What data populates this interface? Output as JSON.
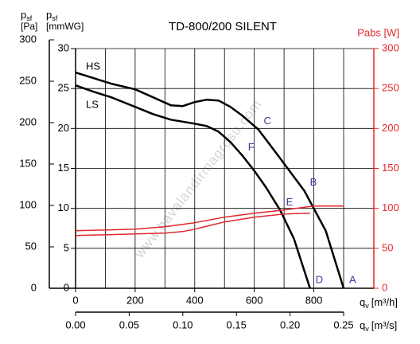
{
  "chart_data": {
    "type": "line",
    "title": "TD-800/200 SILENT",
    "y_label": {
      "symbol": "p",
      "sub": "sf",
      "unit": "[Pa]"
    },
    "ymm_label": {
      "symbol": "p",
      "sub": "sf",
      "unit": "[mmWG]"
    },
    "y2_label": "Pabs [W]",
    "x_label": {
      "symbol": "q",
      "sub": "v",
      "unit": "[m³/h]"
    },
    "x2_label": {
      "symbol": "q",
      "sub": "v",
      "unit": "[m³/s]"
    },
    "ylim": [
      0,
      30
    ],
    "yticks": [
      0,
      5,
      10,
      15,
      20,
      25,
      30
    ],
    "pa_lim": [
      0,
      300
    ],
    "pa_ticks": [
      0,
      50,
      100,
      150,
      200,
      250,
      300
    ],
    "y2lim": [
      0,
      300
    ],
    "y2ticks": [
      0,
      50,
      100,
      150,
      200,
      250,
      300
    ],
    "y2_color": "#e8262b",
    "xlim": [
      0,
      900
    ],
    "xticks": [
      0,
      200,
      400,
      600,
      800
    ],
    "xgrid": [
      100,
      200,
      300,
      400,
      500,
      600,
      700,
      800,
      900
    ],
    "x2lim": [
      0,
      0.25
    ],
    "x2ticks": [
      {
        "value": 0,
        "label": "0.00"
      },
      0.05,
      {
        "value": 0.1,
        "label": "0.10"
      },
      0.15,
      {
        "value": 0.2,
        "label": "0.20"
      },
      0.25
    ],
    "grid": true,
    "series": [
      {
        "name": "HS",
        "color": "#000000",
        "x": [
          0,
          60,
          120,
          200,
          260,
          320,
          360,
          400,
          440,
          480,
          520,
          560,
          613,
          680,
          768,
          840,
          900
        ],
        "values": [
          27.0,
          26.3,
          25.6,
          24.9,
          23.9,
          22.9,
          22.8,
          23.3,
          23.6,
          23.5,
          22.7,
          21.6,
          19.9,
          16.6,
          12.2,
          7.2,
          0
        ]
      },
      {
        "name": "LS",
        "color": "#000000",
        "x": [
          0,
          60,
          120,
          200,
          260,
          320,
          400,
          440,
          480,
          520,
          560,
          600,
          640,
          688,
          733,
          787
        ],
        "values": [
          25.4,
          24.6,
          23.9,
          22.7,
          21.8,
          21.1,
          20.6,
          20.3,
          19.6,
          18.3,
          16.6,
          14.7,
          12.6,
          9.7,
          6.2,
          0
        ]
      },
      {
        "color": "#e0282e",
        "axis": "y2",
        "x": [
          0,
          200,
          300,
          400,
          500,
          600,
          700,
          800,
          900
        ],
        "values": [
          72,
          74,
          77,
          82,
          89,
          94,
          98,
          103,
          103
        ]
      },
      {
        "color": "#e0282e",
        "axis": "y2",
        "x": [
          0,
          200,
          300,
          360,
          400,
          500,
          600,
          700,
          787
        ],
        "values": [
          66,
          68,
          69,
          71,
          74,
          83,
          89,
          93,
          94
        ]
      }
    ],
    "annotation_color": "#3a3a9a",
    "annotations": [
      {
        "text": "A",
        "series": 0,
        "index": 16
      },
      {
        "text": "B",
        "series": 0,
        "index": 14
      },
      {
        "text": "C",
        "series": 0,
        "index": 12
      },
      {
        "text": "D",
        "series": 1,
        "index": 15
      },
      {
        "text": "E",
        "series": 1,
        "index": 13
      },
      {
        "text": "F",
        "series": 1,
        "index": 10
      }
    ],
    "watermark": "www.havalandirmagrosu.com"
  }
}
